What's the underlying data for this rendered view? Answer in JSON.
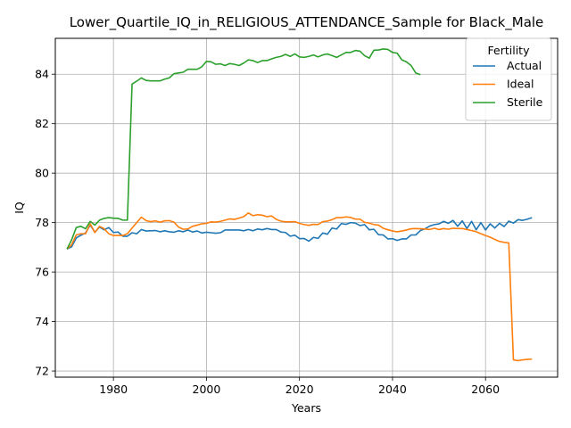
{
  "chart_data": {
    "type": "line",
    "title": "Lower_Quartile_IQ_in_RELIGIOUS_ATTENDANCE_Sample for Black_Male",
    "xlabel": "Years",
    "ylabel": "IQ",
    "xlim": [
      1967.5,
      2075.5
    ],
    "ylim": [
      71.75,
      85.45
    ],
    "xticks": [
      1980,
      2000,
      2020,
      2040,
      2060
    ],
    "yticks": [
      72,
      74,
      76,
      78,
      80,
      82,
      84
    ],
    "grid": true,
    "legend": {
      "title": "Fertility",
      "placement": "top-right"
    },
    "series": [
      {
        "name": "Actual",
        "color": "#1f77b4",
        "x": [
          1970,
          1971,
          1972,
          1973,
          1974,
          1975,
          1976,
          1977,
          1978,
          1979,
          1980,
          1981,
          1982,
          1983,
          1984,
          1985,
          1986,
          1987,
          1988,
          1989,
          1990,
          1991,
          1992,
          1993,
          1994,
          1995,
          1996,
          1997,
          1998,
          1999,
          2000,
          2001,
          2002,
          2003,
          2004,
          2005,
          2006,
          2007,
          2008,
          2009,
          2010,
          2011,
          2012,
          2013,
          2014,
          2015,
          2016,
          2017,
          2018,
          2019,
          2020,
          2021,
          2022,
          2023,
          2024,
          2025,
          2026,
          2027,
          2028,
          2029,
          2030,
          2031,
          2032,
          2033,
          2034,
          2035,
          2036,
          2037,
          2038,
          2039,
          2040,
          2041,
          2042,
          2043,
          2044,
          2045,
          2046,
          2047,
          2048,
          2049,
          2050,
          2051,
          2052,
          2053,
          2054,
          2055,
          2056,
          2057,
          2058,
          2059,
          2060,
          2061,
          2062,
          2063,
          2064,
          2065,
          2066,
          2067,
          2068,
          2069,
          2070
        ],
        "values": [
          76.93,
          77.02,
          77.38,
          77.49,
          77.58,
          77.9,
          77.61,
          77.82,
          77.71,
          77.8,
          77.6,
          77.62,
          77.45,
          77.45,
          77.59,
          77.55,
          77.72,
          77.66,
          77.67,
          77.68,
          77.63,
          77.67,
          77.63,
          77.61,
          77.67,
          77.63,
          77.7,
          77.62,
          77.66,
          77.58,
          77.61,
          77.59,
          77.57,
          77.59,
          77.7,
          77.7,
          77.7,
          77.7,
          77.67,
          77.72,
          77.67,
          77.74,
          77.71,
          77.76,
          77.72,
          77.72,
          77.62,
          77.6,
          77.45,
          77.49,
          77.35,
          77.36,
          77.25,
          77.4,
          77.36,
          77.58,
          77.53,
          77.78,
          77.74,
          77.96,
          77.93,
          78.0,
          77.98,
          77.88,
          77.92,
          77.71,
          77.73,
          77.51,
          77.5,
          77.34,
          77.35,
          77.28,
          77.34,
          77.34,
          77.5,
          77.5,
          77.68,
          77.75,
          77.86,
          77.92,
          77.95,
          78.05,
          77.97,
          78.09,
          77.85,
          78.07,
          77.76,
          78.05,
          77.71,
          78.0,
          77.7,
          77.95,
          77.78,
          77.97,
          77.84,
          78.06,
          77.98,
          78.12,
          78.09,
          78.14,
          78.2
        ]
      },
      {
        "name": "Ideal",
        "color": "#ff7f0e",
        "x": [
          1970,
          1971,
          1972,
          1973,
          1974,
          1975,
          1976,
          1977,
          1978,
          1979,
          1980,
          1981,
          1982,
          1983,
          1984,
          1985,
          1986,
          1987,
          1988,
          1989,
          1990,
          1991,
          1992,
          1993,
          1994,
          1995,
          1996,
          1997,
          1998,
          1999,
          2000,
          2001,
          2002,
          2003,
          2004,
          2005,
          2006,
          2007,
          2008,
          2009,
          2010,
          2011,
          2012,
          2013,
          2014,
          2015,
          2016,
          2017,
          2018,
          2019,
          2020,
          2021,
          2022,
          2023,
          2024,
          2025,
          2026,
          2027,
          2028,
          2029,
          2030,
          2031,
          2032,
          2033,
          2034,
          2035,
          2036,
          2037,
          2038,
          2039,
          2040,
          2041,
          2042,
          2043,
          2044,
          2045,
          2046,
          2047,
          2048,
          2049,
          2050,
          2051,
          2052,
          2053,
          2054,
          2055,
          2056,
          2057,
          2058,
          2059,
          2060,
          2061,
          2062,
          2063,
          2064,
          2065,
          2066,
          2067,
          2068,
          2069,
          2070
        ],
        "values": [
          76.93,
          77.1,
          77.5,
          77.55,
          77.55,
          77.95,
          77.6,
          77.85,
          77.75,
          77.55,
          77.48,
          77.48,
          77.48,
          77.55,
          77.78,
          78.0,
          78.22,
          78.08,
          78.04,
          78.07,
          78.02,
          78.07,
          78.08,
          78.02,
          77.82,
          77.73,
          77.74,
          77.85,
          77.9,
          77.95,
          77.97,
          78.03,
          78.02,
          78.05,
          78.1,
          78.15,
          78.13,
          78.18,
          78.24,
          78.39,
          78.28,
          78.32,
          78.3,
          78.24,
          78.27,
          78.13,
          78.06,
          78.03,
          78.03,
          78.04,
          77.97,
          77.92,
          77.89,
          77.93,
          77.92,
          78.04,
          78.06,
          78.12,
          78.2,
          78.2,
          78.23,
          78.21,
          78.14,
          78.14,
          78.01,
          77.98,
          77.92,
          77.9,
          77.77,
          77.71,
          77.66,
          77.63,
          77.66,
          77.7,
          77.75,
          77.76,
          77.75,
          77.74,
          77.72,
          77.77,
          77.72,
          77.76,
          77.73,
          77.77,
          77.76,
          77.76,
          77.72,
          77.68,
          77.63,
          77.55,
          77.48,
          77.41,
          77.32,
          77.24,
          77.2,
          77.18,
          72.45,
          72.42,
          72.45,
          72.47,
          72.48
        ]
      },
      {
        "name": "Sterile",
        "color": "#2ca02c",
        "x": [
          1970,
          1971,
          1972,
          1973,
          1974,
          1975,
          1976,
          1977,
          1978,
          1979,
          1980,
          1981,
          1982,
          1983,
          1984,
          1985,
          1986,
          1987,
          1988,
          1989,
          1990,
          1991,
          1992,
          1993,
          1994,
          1995,
          1996,
          1997,
          1998,
          1999,
          2000,
          2001,
          2002,
          2003,
          2004,
          2005,
          2006,
          2007,
          2008,
          2009,
          2010,
          2011,
          2012,
          2013,
          2014,
          2015,
          2016,
          2017,
          2018,
          2019,
          2020,
          2021,
          2022,
          2023,
          2024,
          2025,
          2026,
          2027,
          2028,
          2029,
          2030,
          2031,
          2032,
          2033,
          2034,
          2035,
          2036,
          2037,
          2038,
          2039,
          2040,
          2041,
          2042,
          2043,
          2044,
          2045,
          2046
        ],
        "values": [
          76.93,
          77.3,
          77.8,
          77.85,
          77.75,
          78.05,
          77.9,
          78.1,
          78.17,
          78.2,
          78.18,
          78.17,
          78.1,
          78.1,
          83.6,
          83.72,
          83.85,
          83.75,
          83.73,
          83.73,
          83.73,
          83.8,
          83.85,
          84.02,
          84.05,
          84.08,
          84.2,
          84.2,
          84.2,
          84.3,
          84.52,
          84.5,
          84.4,
          84.42,
          84.35,
          84.43,
          84.4,
          84.35,
          84.45,
          84.58,
          84.55,
          84.47,
          84.55,
          84.55,
          84.62,
          84.68,
          84.72,
          84.8,
          84.72,
          84.82,
          84.7,
          84.68,
          84.72,
          84.78,
          84.7,
          84.78,
          84.82,
          84.75,
          84.68,
          84.78,
          84.88,
          84.88,
          84.96,
          84.93,
          84.75,
          84.65,
          84.97,
          84.98,
          85.02,
          85.0,
          84.88,
          84.85,
          84.58,
          84.5,
          84.35,
          84.05,
          83.98
        ]
      }
    ]
  }
}
